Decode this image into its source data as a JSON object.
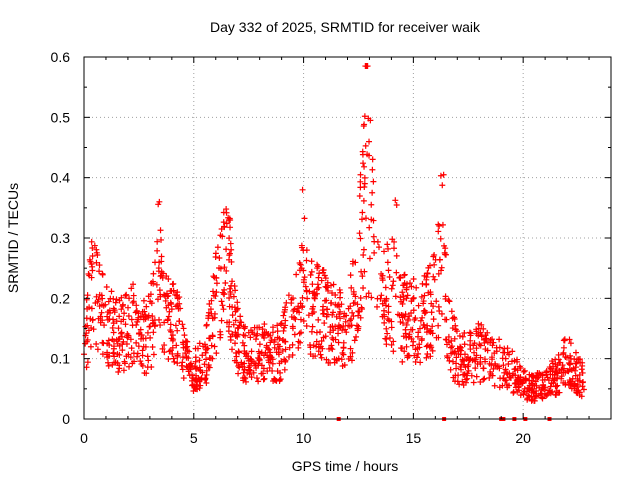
{
  "chart_data": {
    "type": "scatter",
    "title": "Day 332 of 2025, SRMTID for receiver waik",
    "xlabel": "GPS time / hours",
    "ylabel": "SRMTID / TECUs",
    "xlim": [
      0,
      24
    ],
    "ylim": [
      0,
      0.6
    ],
    "xticks": [
      0,
      5,
      10,
      15,
      20
    ],
    "xtick_labels": [
      "0",
      "5",
      "10",
      "15",
      "20"
    ],
    "yticks": [
      0,
      0.1,
      0.2,
      0.3,
      0.4,
      0.5,
      0.6
    ],
    "ytick_labels": [
      "0",
      "0.1",
      "0.2",
      "0.3",
      "0.4",
      "0.5",
      "0.6"
    ],
    "grid": true,
    "marker": "+",
    "color": "#ff0000",
    "series": [
      {
        "name": "SRMTID",
        "envelope": [
          {
            "x": 0.0,
            "y": 0.09
          },
          {
            "x": 0.2,
            "y": 0.17
          },
          {
            "x": 0.4,
            "y": 0.21
          },
          {
            "x": 0.7,
            "y": 0.18
          },
          {
            "x": 1.0,
            "y": 0.16
          },
          {
            "x": 1.5,
            "y": 0.14
          },
          {
            "x": 2.0,
            "y": 0.15
          },
          {
            "x": 2.4,
            "y": 0.16
          },
          {
            "x": 2.8,
            "y": 0.13
          },
          {
            "x": 3.2,
            "y": 0.17
          },
          {
            "x": 3.4,
            "y": 0.24
          },
          {
            "x": 3.7,
            "y": 0.18
          },
          {
            "x": 4.0,
            "y": 0.16
          },
          {
            "x": 4.4,
            "y": 0.14
          },
          {
            "x": 4.7,
            "y": 0.09
          },
          {
            "x": 5.0,
            "y": 0.08
          },
          {
            "x": 5.3,
            "y": 0.09
          },
          {
            "x": 5.6,
            "y": 0.11
          },
          {
            "x": 5.9,
            "y": 0.17
          },
          {
            "x": 6.2,
            "y": 0.23
          },
          {
            "x": 6.5,
            "y": 0.25
          },
          {
            "x": 6.8,
            "y": 0.18
          },
          {
            "x": 7.1,
            "y": 0.12
          },
          {
            "x": 7.5,
            "y": 0.1
          },
          {
            "x": 8.0,
            "y": 0.11
          },
          {
            "x": 8.5,
            "y": 0.11
          },
          {
            "x": 9.0,
            "y": 0.11
          },
          {
            "x": 9.5,
            "y": 0.17
          },
          {
            "x": 10.0,
            "y": 0.2
          },
          {
            "x": 10.5,
            "y": 0.18
          },
          {
            "x": 11.0,
            "y": 0.17
          },
          {
            "x": 11.5,
            "y": 0.15
          },
          {
            "x": 12.0,
            "y": 0.15
          },
          {
            "x": 12.4,
            "y": 0.2
          },
          {
            "x": 12.7,
            "y": 0.33
          },
          {
            "x": 13.0,
            "y": 0.35
          },
          {
            "x": 13.3,
            "y": 0.27
          },
          {
            "x": 13.6,
            "y": 0.19
          },
          {
            "x": 14.0,
            "y": 0.21
          },
          {
            "x": 14.4,
            "y": 0.17
          },
          {
            "x": 14.8,
            "y": 0.17
          },
          {
            "x": 15.2,
            "y": 0.16
          },
          {
            "x": 15.6,
            "y": 0.17
          },
          {
            "x": 16.0,
            "y": 0.21
          },
          {
            "x": 16.3,
            "y": 0.27
          },
          {
            "x": 16.6,
            "y": 0.15
          },
          {
            "x": 17.0,
            "y": 0.1
          },
          {
            "x": 17.5,
            "y": 0.1
          },
          {
            "x": 18.0,
            "y": 0.11
          },
          {
            "x": 18.5,
            "y": 0.1
          },
          {
            "x": 19.0,
            "y": 0.09
          },
          {
            "x": 19.5,
            "y": 0.08
          },
          {
            "x": 20.0,
            "y": 0.06
          },
          {
            "x": 20.5,
            "y": 0.05
          },
          {
            "x": 21.0,
            "y": 0.06
          },
          {
            "x": 21.5,
            "y": 0.07
          },
          {
            "x": 22.0,
            "y": 0.1
          },
          {
            "x": 22.4,
            "y": 0.08
          },
          {
            "x": 22.8,
            "y": 0.06
          }
        ],
        "x_range": [
          0.0,
          22.8
        ],
        "marker_count": 1600
      }
    ],
    "baseline_markers_x": [
      11.6,
      16.4,
      19.0,
      19.1,
      19.6,
      20.1,
      21.2
    ]
  }
}
